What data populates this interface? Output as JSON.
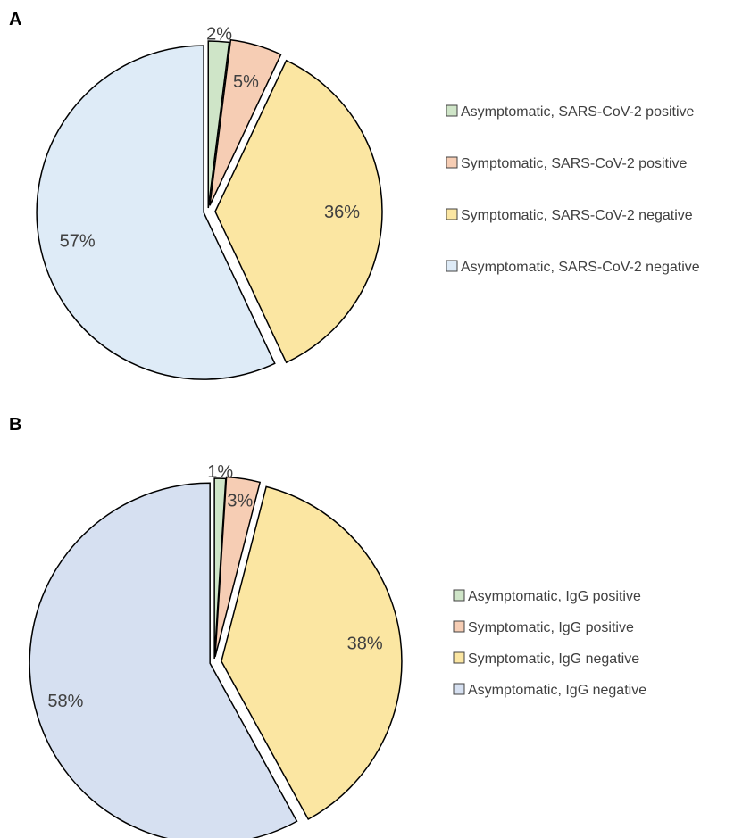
{
  "chart_data": [
    {
      "type": "pie",
      "panel": "A",
      "slices": [
        {
          "name": "Asymptomatic, SARS-CoV-2 positive",
          "value": 2,
          "label": "2%",
          "color": "#cfe5c8"
        },
        {
          "name": "Symptomatic, SARS-CoV-2 positive",
          "value": 5,
          "label": "5%",
          "color": "#f6cdb4"
        },
        {
          "name": "Symptomatic, SARS-CoV-2 negative",
          "value": 36,
          "label": "36%",
          "color": "#fbe6a2"
        },
        {
          "name": "Asymptomatic, SARS-CoV-2 negative",
          "value": 57,
          "label": "57%",
          "color": "#deebf7"
        }
      ],
      "legend_position": "right",
      "exploded": true
    },
    {
      "type": "pie",
      "panel": "B",
      "slices": [
        {
          "name": "Asymptomatic, IgG positive",
          "value": 1,
          "label": "1%",
          "color": "#cfe5c8"
        },
        {
          "name": "Symptomatic, IgG positive",
          "value": 3,
          "label": "3%",
          "color": "#f6cdb4"
        },
        {
          "name": "Symptomatic, IgG negative",
          "value": 38,
          "label": "38%",
          "color": "#fbe6a2"
        },
        {
          "name": "Asymptomatic, IgG negative",
          "value": 58,
          "label": "58%",
          "color": "#d6e0f1"
        }
      ],
      "legend_position": "right",
      "exploded": true
    }
  ]
}
